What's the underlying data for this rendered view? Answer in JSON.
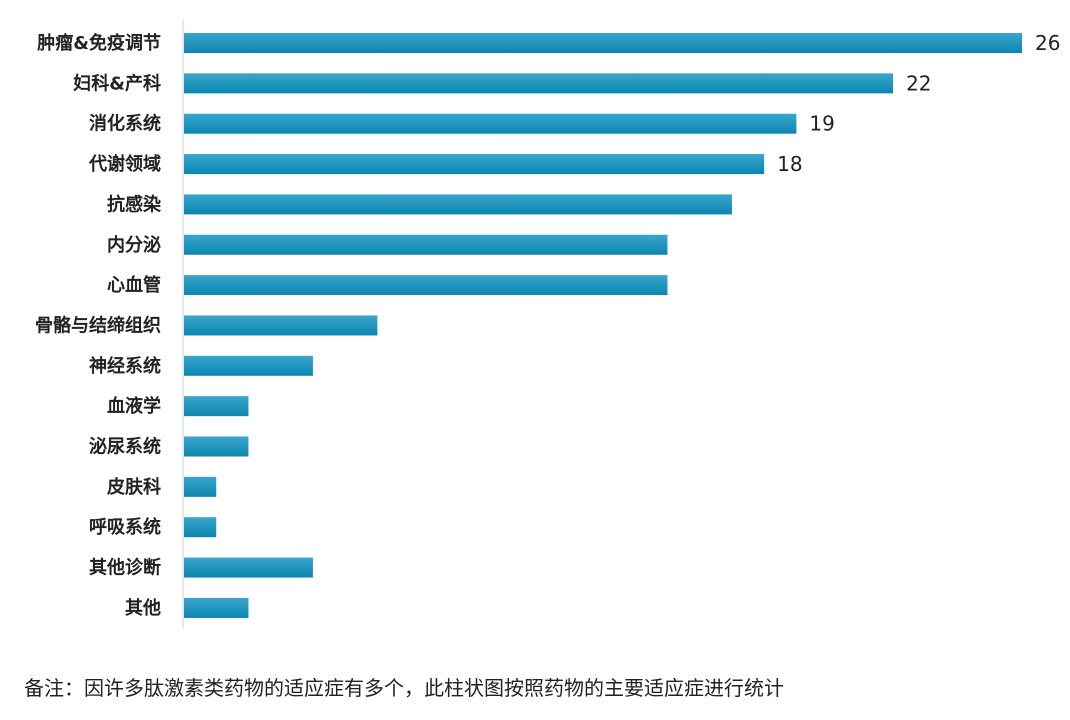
{
  "chart_data": {
    "type": "bar",
    "orientation": "horizontal",
    "categories": [
      "肿瘤&免疫调节",
      "妇科&产科",
      "消化系统",
      "代谢领域",
      "抗感染",
      "内分泌",
      "心血管",
      "骨骼与结缔组织",
      "神经系统",
      "血液学",
      "泌尿系统",
      "皮肤科",
      "呼吸系统",
      "其他诊断",
      "其他"
    ],
    "values": [
      26,
      22,
      19,
      18,
      17,
      15,
      15,
      6,
      4,
      2,
      2,
      1,
      1,
      4,
      2
    ],
    "data_labels": [
      "26",
      "22",
      "19",
      "18",
      "",
      "",
      "",
      "",
      "",
      "",
      "",
      "",
      "",
      "",
      ""
    ],
    "xlim": [
      0,
      26
    ],
    "grid": false,
    "legend": "none",
    "bar_color": "#0a86b2",
    "bar_color_light": "#3aa6cc",
    "axis_color": "#d0d0d0"
  },
  "footnote": "备注：因许多肽激素类药物的适应症有多个，此柱状图按照药物的主要适应症进行统计"
}
